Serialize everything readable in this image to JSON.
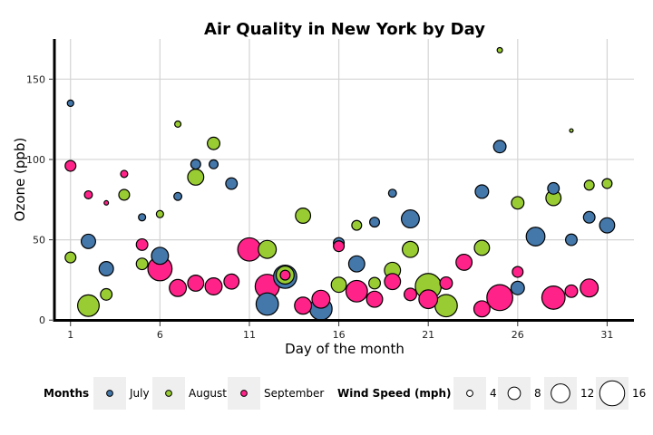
{
  "chart_data": {
    "type": "scatter",
    "title": "Air Quality in New York by Day",
    "xlabel": "Day of the month",
    "ylabel": "Ozone (ppb)",
    "xlim": [
      0.1,
      32.5
    ],
    "ylim": [
      -1,
      175
    ],
    "x_ticks": [
      1,
      6,
      11,
      16,
      21,
      26,
      31
    ],
    "y_ticks": [
      0,
      50,
      100,
      150
    ],
    "grid": true,
    "size_variable": "Wind Speed (mph)",
    "series": [
      {
        "name": "July",
        "color": "#4477aa",
        "points": [
          {
            "day": 1,
            "ozone": 135,
            "wind": 4.1
          },
          {
            "day": 2,
            "ozone": 49,
            "wind": 9.2
          },
          {
            "day": 3,
            "ozone": 32,
            "wind": 9.2
          },
          {
            "day": 5,
            "ozone": 64,
            "wind": 4.6
          },
          {
            "day": 6,
            "ozone": 40,
            "wind": 10.9
          },
          {
            "day": 7,
            "ozone": 77,
            "wind": 5.1
          },
          {
            "day": 8,
            "ozone": 97,
            "wind": 6.3
          },
          {
            "day": 9,
            "ozone": 97,
            "wind": 5.7
          },
          {
            "day": 10,
            "ozone": 85,
            "wind": 7.4
          },
          {
            "day": 12,
            "ozone": 10,
            "wind": 14.3
          },
          {
            "day": 13,
            "ozone": 27,
            "wind": 14.9
          },
          {
            "day": 15,
            "ozone": 7,
            "wind": 14.3
          },
          {
            "day": 16,
            "ozone": 48,
            "wind": 6.9
          },
          {
            "day": 17,
            "ozone": 35,
            "wind": 10.3
          },
          {
            "day": 18,
            "ozone": 61,
            "wind": 6.3
          },
          {
            "day": 19,
            "ozone": 79,
            "wind": 5.1
          },
          {
            "day": 20,
            "ozone": 63,
            "wind": 11.5
          },
          {
            "day": 24,
            "ozone": 80,
            "wind": 8.6
          },
          {
            "day": 25,
            "ozone": 108,
            "wind": 8.0
          },
          {
            "day": 26,
            "ozone": 20,
            "wind": 8.6
          },
          {
            "day": 27,
            "ozone": 52,
            "wind": 12.0
          },
          {
            "day": 28,
            "ozone": 82,
            "wind": 7.4
          },
          {
            "day": 29,
            "ozone": 50,
            "wind": 7.4
          },
          {
            "day": 30,
            "ozone": 64,
            "wind": 7.4
          },
          {
            "day": 31,
            "ozone": 59,
            "wind": 9.7
          }
        ]
      },
      {
        "name": "August",
        "color": "#99cc33",
        "points": [
          {
            "day": 1,
            "ozone": 39,
            "wind": 6.9
          },
          {
            "day": 2,
            "ozone": 9,
            "wind": 13.8
          },
          {
            "day": 3,
            "ozone": 16,
            "wind": 7.4
          },
          {
            "day": 4,
            "ozone": 78,
            "wind": 6.9
          },
          {
            "day": 5,
            "ozone": 35,
            "wind": 7.4
          },
          {
            "day": 6,
            "ozone": 66,
            "wind": 4.6
          },
          {
            "day": 7,
            "ozone": 122,
            "wind": 4.0
          },
          {
            "day": 8,
            "ozone": 89,
            "wind": 10.3
          },
          {
            "day": 9,
            "ozone": 110,
            "wind": 8.0
          },
          {
            "day": 12,
            "ozone": 44,
            "wind": 11.5
          },
          {
            "day": 13,
            "ozone": 28,
            "wind": 11.5
          },
          {
            "day": 14,
            "ozone": 65,
            "wind": 9.7
          },
          {
            "day": 16,
            "ozone": 22,
            "wind": 9.7
          },
          {
            "day": 17,
            "ozone": 59,
            "wind": 6.3
          },
          {
            "day": 18,
            "ozone": 23,
            "wind": 7.4
          },
          {
            "day": 19,
            "ozone": 31,
            "wind": 10.3
          },
          {
            "day": 20,
            "ozone": 44,
            "wind": 10.3
          },
          {
            "day": 21,
            "ozone": 21,
            "wind": 16.6
          },
          {
            "day": 22,
            "ozone": 9,
            "wind": 14.3
          },
          {
            "day": 24,
            "ozone": 45,
            "wind": 9.7
          },
          {
            "day": 25,
            "ozone": 168,
            "wind": 3.4
          },
          {
            "day": 26,
            "ozone": 73,
            "wind": 8.0
          },
          {
            "day": 28,
            "ozone": 76,
            "wind": 9.7
          },
          {
            "day": 29,
            "ozone": 118,
            "wind": 2.3
          },
          {
            "day": 30,
            "ozone": 84,
            "wind": 6.3
          },
          {
            "day": 31,
            "ozone": 85,
            "wind": 6.3
          }
        ]
      },
      {
        "name": "September",
        "color": "#ff2288",
        "points": [
          {
            "day": 1,
            "ozone": 96,
            "wind": 6.9
          },
          {
            "day": 2,
            "ozone": 78,
            "wind": 5.1
          },
          {
            "day": 3,
            "ozone": 73,
            "wind": 2.8
          },
          {
            "day": 4,
            "ozone": 91,
            "wind": 4.6
          },
          {
            "day": 5,
            "ozone": 47,
            "wind": 7.4
          },
          {
            "day": 6,
            "ozone": 32,
            "wind": 15.5
          },
          {
            "day": 7,
            "ozone": 20,
            "wind": 10.9
          },
          {
            "day": 8,
            "ozone": 23,
            "wind": 10.3
          },
          {
            "day": 9,
            "ozone": 21,
            "wind": 10.9
          },
          {
            "day": 10,
            "ozone": 24,
            "wind": 9.7
          },
          {
            "day": 11,
            "ozone": 44,
            "wind": 14.9
          },
          {
            "day": 12,
            "ozone": 21,
            "wind": 15.5
          },
          {
            "day": 13,
            "ozone": 28,
            "wind": 6.3
          },
          {
            "day": 14,
            "ozone": 9,
            "wind": 10.9
          },
          {
            "day": 15,
            "ozone": 13,
            "wind": 11.5
          },
          {
            "day": 16,
            "ozone": 46,
            "wind": 6.9
          },
          {
            "day": 17,
            "ozone": 18,
            "wind": 13.8
          },
          {
            "day": 18,
            "ozone": 13,
            "wind": 10.3
          },
          {
            "day": 19,
            "ozone": 24,
            "wind": 10.3
          },
          {
            "day": 20,
            "ozone": 16,
            "wind": 8.0
          },
          {
            "day": 21,
            "ozone": 13,
            "wind": 12.0
          },
          {
            "day": 22,
            "ozone": 23,
            "wind": 8.0
          },
          {
            "day": 23,
            "ozone": 36,
            "wind": 10.3
          },
          {
            "day": 24,
            "ozone": 7,
            "wind": 10.3
          },
          {
            "day": 25,
            "ozone": 14,
            "wind": 16.6
          },
          {
            "day": 26,
            "ozone": 30,
            "wind": 6.9
          },
          {
            "day": 28,
            "ozone": 14,
            "wind": 14.9
          },
          {
            "day": 29,
            "ozone": 18,
            "wind": 8.0
          },
          {
            "day": 30,
            "ozone": 20,
            "wind": 11.5
          }
        ]
      }
    ],
    "legend": {
      "placement": "bottom",
      "color_title": "Months",
      "color_items": [
        "July",
        "August",
        "September"
      ],
      "size_title": "Wind Speed (mph)",
      "size_items": [
        4,
        8,
        12,
        16
      ]
    }
  }
}
